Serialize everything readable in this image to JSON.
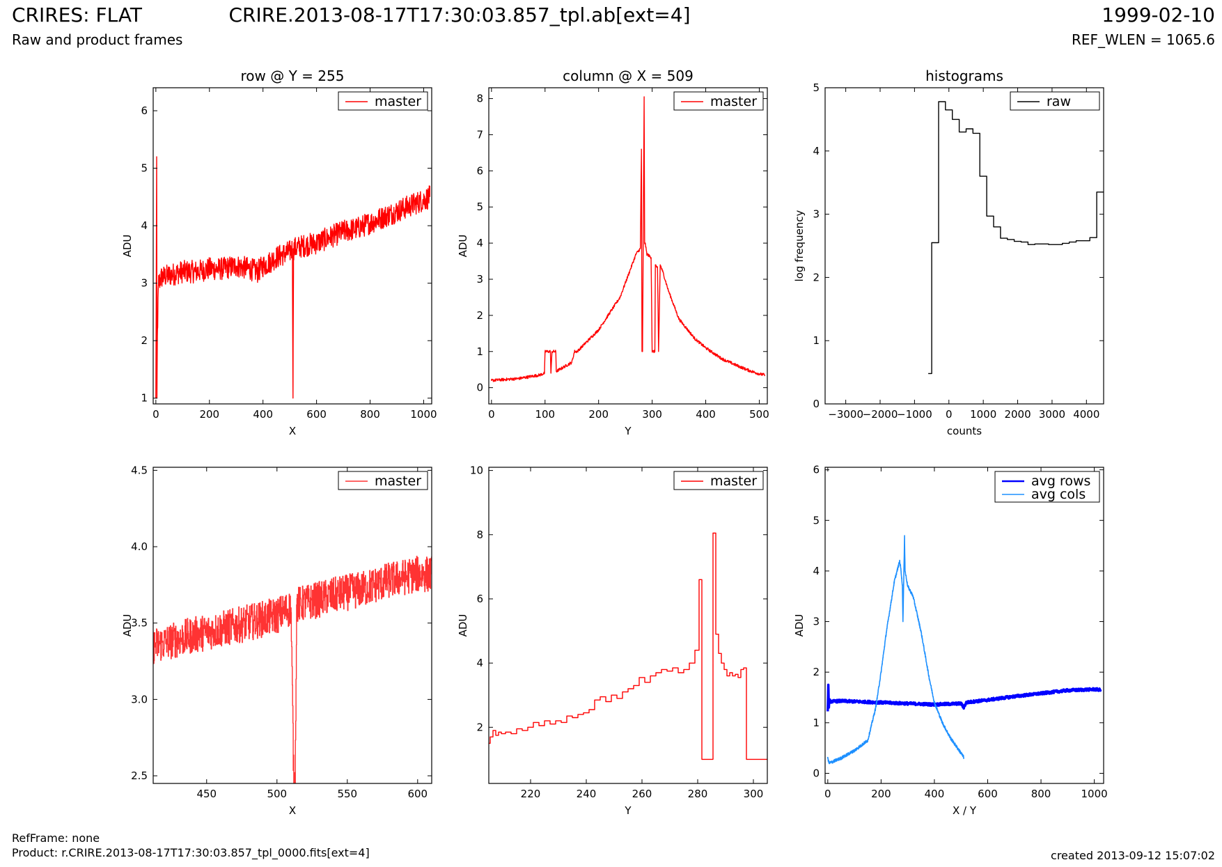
{
  "header": {
    "title_left": "CRIRES: FLAT",
    "subtitle_left": "Raw and product frames",
    "title_center": "CRIRE.2013-08-17T17:30:03.857_tpl.ab[ext=4]",
    "title_right": "1999-02-10",
    "subtitle_right": "REF_WLEN = 1065.6"
  },
  "footer": {
    "refframe": "RefFrame: none",
    "product": "Product: r.CRIRE.2013-08-17T17:30:03.857_tpl_0000.fits[ext=4]",
    "created": "created 2013-09-12 15:07:02"
  },
  "colors": {
    "master": "#ff0000",
    "master_zoom": "#ff3333",
    "raw": "#000000",
    "avg_rows": "#0000ff",
    "avg_cols": "#1e90ff"
  },
  "chart_data": [
    {
      "type": "line",
      "title": "row @ Y = 255",
      "xlabel": "X",
      "ylabel": "ADU",
      "xlim": [
        -10,
        1030
      ],
      "ylim": [
        0.9,
        6.4
      ],
      "xticks": [
        0,
        200,
        400,
        600,
        800,
        1000
      ],
      "yticks": [
        1,
        2,
        3,
        4,
        5,
        6
      ],
      "legend": "top-right",
      "series": [
        {
          "name": "master",
          "color": "#ff0000",
          "noise": 0.2,
          "x": [
            0,
            3,
            4,
            6,
            10,
            20,
            60,
            100,
            150,
            200,
            250,
            300,
            350,
            380,
            400,
            420,
            450,
            500,
            510,
            512,
            514,
            550,
            600,
            650,
            700,
            750,
            800,
            850,
            900,
            950,
            1000,
            1023
          ],
          "y": [
            1.0,
            5.2,
            1.0,
            2.2,
            3.0,
            3.1,
            3.15,
            3.2,
            3.2,
            3.25,
            3.25,
            3.3,
            3.25,
            3.2,
            3.3,
            3.35,
            3.45,
            3.55,
            3.6,
            1.0,
            3.6,
            3.65,
            3.7,
            3.8,
            3.9,
            3.95,
            4.05,
            4.15,
            4.25,
            4.35,
            4.45,
            4.5
          ]
        }
      ]
    },
    {
      "type": "line",
      "title": "column @ X = 509",
      "xlabel": "Y",
      "ylabel": "ADU",
      "xlim": [
        -5,
        515
      ],
      "ylim": [
        -0.45,
        8.3
      ],
      "xticks": [
        0,
        100,
        200,
        300,
        400,
        500
      ],
      "yticks": [
        0,
        1,
        2,
        3,
        4,
        5,
        6,
        7,
        8
      ],
      "legend": "top-right",
      "series": [
        {
          "name": "master",
          "color": "#ff0000",
          "noise": 0.04,
          "x": [
            0,
            50,
            90,
            99,
            100,
            110,
            111,
            113,
            120,
            121,
            150,
            155,
            160,
            200,
            240,
            260,
            270,
            278,
            280,
            281,
            282,
            285,
            286,
            287,
            290,
            298,
            300,
            305,
            306,
            310,
            312,
            315,
            320,
            330,
            350,
            380,
            400,
            430,
            460,
            480,
            500,
            510
          ],
          "y": [
            0.2,
            0.25,
            0.35,
            0.4,
            1.0,
            1.0,
            0.4,
            1.0,
            1.0,
            0.45,
            0.7,
            1.0,
            1.0,
            1.6,
            2.5,
            3.3,
            3.7,
            3.85,
            6.6,
            1.0,
            1.0,
            8.05,
            4.0,
            4.0,
            3.7,
            3.6,
            1.0,
            1.0,
            3.4,
            3.3,
            1.0,
            3.4,
            3.2,
            2.7,
            1.9,
            1.35,
            1.1,
            0.8,
            0.6,
            0.48,
            0.38,
            0.35
          ]
        }
      ]
    },
    {
      "type": "line",
      "title": "histograms",
      "xlabel": "counts",
      "ylabel": "log frequency",
      "xlim": [
        -3600,
        4500
      ],
      "ylim": [
        0,
        5
      ],
      "xticks": [
        -3000,
        -2000,
        -1000,
        0,
        1000,
        2000,
        3000,
        4000
      ],
      "yticks": [
        0,
        1,
        2,
        3,
        4,
        5
      ],
      "legend": "top-right",
      "series": [
        {
          "name": "raw",
          "color": "#000000",
          "step": true,
          "x": [
            -600,
            -400,
            -200,
            0,
            200,
            400,
            600,
            800,
            1000,
            1200,
            1400,
            1600,
            1800,
            2000,
            2200,
            2400,
            2600,
            2800,
            3000,
            3200,
            3400,
            3600,
            3800,
            4000,
            4200,
            4400
          ],
          "y": [
            0.48,
            2.55,
            4.78,
            4.65,
            4.5,
            4.3,
            4.35,
            4.28,
            3.6,
            2.97,
            2.8,
            2.62,
            2.6,
            2.57,
            2.56,
            2.52,
            2.53,
            2.53,
            2.52,
            2.52,
            2.54,
            2.56,
            2.58,
            2.58,
            2.63,
            3.35
          ]
        }
      ]
    },
    {
      "type": "line",
      "xlabel": "X",
      "ylabel": "ADU",
      "xlim": [
        412,
        610
      ],
      "ylim": [
        2.45,
        4.52
      ],
      "xticks": [
        450,
        500,
        550,
        600
      ],
      "yticks": [
        2.5,
        3.0,
        3.5,
        4.0,
        4.5
      ],
      "ytick_format": "1f",
      "legend": "top-right",
      "series": [
        {
          "name": "master",
          "color": "#ff3333",
          "step": true,
          "noise": 0.12,
          "x": [
            412,
            440,
            470,
            500,
            510,
            512,
            513,
            514,
            520,
            540,
            560,
            580,
            600,
            610
          ],
          "y": [
            3.35,
            3.42,
            3.48,
            3.55,
            3.6,
            2.45,
            2.45,
            3.62,
            3.63,
            3.68,
            3.72,
            3.78,
            3.82,
            3.82
          ]
        }
      ]
    },
    {
      "type": "line",
      "xlabel": "Y",
      "ylabel": "ADU",
      "xlim": [
        205,
        305
      ],
      "ylim": [
        0.25,
        10.1
      ],
      "xticks": [
        220,
        240,
        260,
        280,
        300
      ],
      "yticks": [
        2,
        4,
        6,
        8,
        10
      ],
      "legend": "top-right",
      "series": [
        {
          "name": "master",
          "color": "#ff0000",
          "step": true,
          "x": [
            205,
            206,
            207,
            208,
            209,
            210,
            212,
            214,
            216,
            218,
            220,
            222,
            224,
            226,
            228,
            230,
            232,
            234,
            236,
            238,
            240,
            242,
            244,
            246,
            248,
            250,
            252,
            254,
            256,
            258,
            260,
            262,
            264,
            266,
            268,
            270,
            272,
            274,
            276,
            278,
            280,
            281,
            282,
            283,
            284,
            285,
            286,
            287,
            288,
            289,
            290,
            291,
            292,
            293,
            294,
            295,
            296,
            297,
            298,
            299,
            300,
            302,
            304,
            305
          ],
          "y": [
            1.5,
            1.7,
            1.9,
            1.75,
            1.85,
            1.8,
            1.85,
            1.8,
            1.95,
            1.9,
            2.0,
            2.15,
            2.05,
            2.2,
            2.1,
            2.2,
            2.15,
            2.35,
            2.3,
            2.4,
            2.45,
            2.55,
            2.85,
            2.95,
            2.8,
            3.0,
            2.9,
            3.1,
            3.2,
            3.3,
            3.55,
            3.4,
            3.6,
            3.7,
            3.8,
            3.75,
            3.85,
            3.7,
            3.8,
            4.0,
            4.4,
            6.6,
            1.0,
            1.0,
            1.0,
            1.0,
            8.05,
            4.9,
            4.3,
            4.0,
            3.8,
            3.6,
            3.7,
            3.6,
            3.65,
            3.55,
            3.8,
            3.85,
            1.0,
            1.0,
            1.0,
            1.0,
            1.0,
            1.0
          ]
        }
      ]
    },
    {
      "type": "line",
      "xlabel": "X / Y",
      "ylabel": "ADU",
      "xlim": [
        -10,
        1035
      ],
      "ylim": [
        -0.2,
        6.05
      ],
      "xticks": [
        0,
        200,
        400,
        600,
        800,
        1000
      ],
      "yticks": [
        0,
        1,
        2,
        3,
        4,
        5,
        6
      ],
      "legend": "top-right",
      "series": [
        {
          "name": "avg rows",
          "color": "#0000ff",
          "width": 3.5,
          "noise": 0.025,
          "x": [
            0,
            2,
            4,
            6,
            10,
            50,
            100,
            200,
            300,
            400,
            450,
            500,
            510,
            520,
            550,
            600,
            700,
            800,
            900,
            1000,
            1023
          ],
          "y": [
            1.25,
            1.75,
            1.3,
            1.45,
            1.42,
            1.43,
            1.42,
            1.4,
            1.38,
            1.36,
            1.37,
            1.38,
            1.3,
            1.4,
            1.42,
            1.45,
            1.52,
            1.58,
            1.64,
            1.66,
            1.65
          ]
        },
        {
          "name": "avg cols",
          "color": "#1e90ff",
          "width": 1.6,
          "noise": 0.03,
          "x": [
            0,
            5,
            50,
            100,
            150,
            180,
            200,
            220,
            250,
            270,
            275,
            280,
            282,
            285,
            288,
            290,
            300,
            320,
            350,
            380,
            400,
            430,
            460,
            480,
            500,
            510
          ],
          "y": [
            0.3,
            0.2,
            0.3,
            0.45,
            0.65,
            1.3,
            2.0,
            2.8,
            3.8,
            4.2,
            4.0,
            3.7,
            3.0,
            3.8,
            4.7,
            4.0,
            3.7,
            3.5,
            2.8,
            1.9,
            1.4,
            1.0,
            0.7,
            0.55,
            0.4,
            0.32
          ]
        }
      ]
    }
  ]
}
